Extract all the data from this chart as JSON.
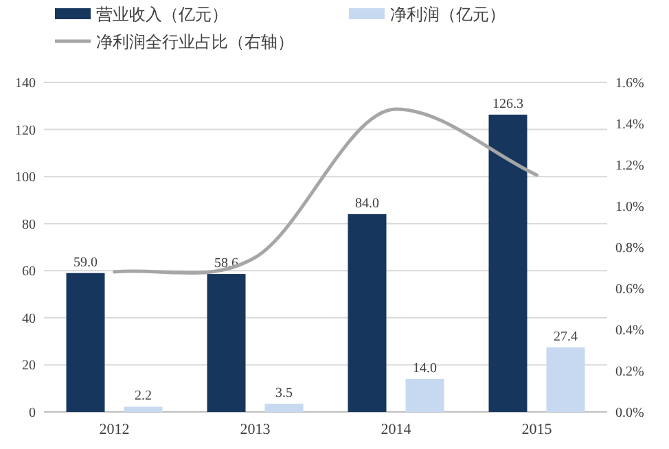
{
  "chart_data": {
    "type": "bar",
    "categories": [
      "2012",
      "2013",
      "2014",
      "2015"
    ],
    "series": [
      {
        "name": "营业收入（亿元）",
        "color": "#17365d",
        "values": [
          59.0,
          58.6,
          84.0,
          126.3
        ],
        "value_labels": [
          "59.0",
          "58.6",
          "84.0",
          "126.3"
        ]
      },
      {
        "name": "净利润（亿元）",
        "color": "#c6d9f1",
        "values": [
          2.2,
          3.5,
          14.0,
          27.4
        ],
        "value_labels": [
          "2.2",
          "3.5",
          "14.0",
          "27.4"
        ]
      },
      {
        "name": "净利润全行业占比（右轴）",
        "type": "line",
        "axis": "y2",
        "color": "#a6a6a6",
        "values": [
          0.68,
          0.75,
          1.47,
          1.15
        ]
      }
    ],
    "ylim": [
      0,
      140
    ],
    "yticks": [
      0,
      20,
      40,
      60,
      80,
      100,
      120,
      140
    ],
    "y2lim": [
      0,
      1.6
    ],
    "y2ticks": [
      {
        "value": 0,
        "label": "0.0%"
      },
      {
        "value": 0.2,
        "label": "0.2%"
      },
      {
        "value": 0.4,
        "label": "0.4%"
      },
      {
        "value": 0.6,
        "label": "0.6%"
      },
      {
        "value": 0.8,
        "label": "0.8%"
      },
      {
        "value": 1.0,
        "label": "1.0%"
      },
      {
        "value": 1.2,
        "label": "1.2%"
      },
      {
        "value": 1.4,
        "label": "1.4%"
      },
      {
        "value": 1.6,
        "label": "1.6%"
      }
    ],
    "grid": "y",
    "legend": "top",
    "marker": "none"
  }
}
